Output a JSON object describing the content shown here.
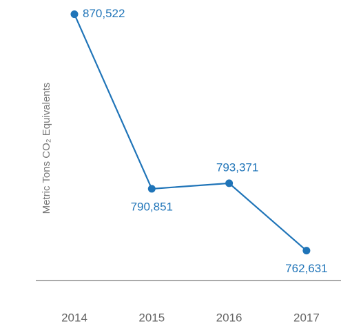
{
  "chart_data": {
    "type": "line",
    "y_label": "Metric Tons CO₂ Equivalents",
    "categories": [
      "2014",
      "2015",
      "2016",
      "2017"
    ],
    "values": [
      870522,
      790851,
      793371,
      762631
    ],
    "value_labels": [
      "870,522",
      "790,851",
      "793,371",
      "762,631"
    ],
    "color": "#1f74b8",
    "ylim": [
      749000,
      877000
    ]
  }
}
